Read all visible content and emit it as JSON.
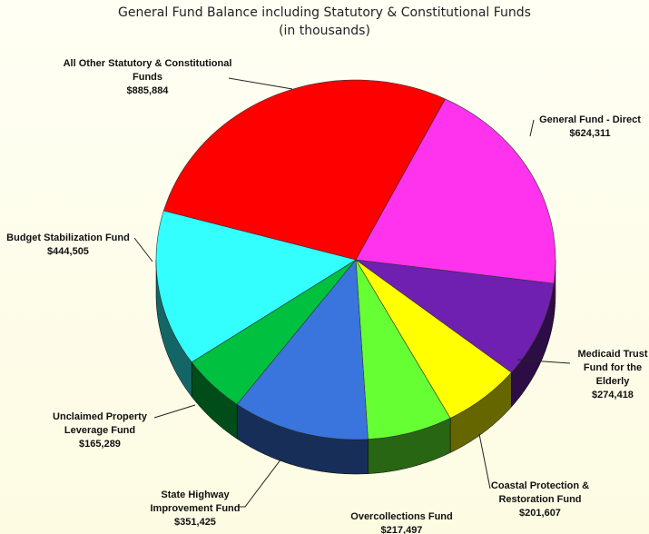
{
  "chart_data": {
    "type": "pie",
    "title": "General Fund Balance including Statutory & Constitutional Funds",
    "subtitle": "(in thousands)",
    "categories": [
      "General Fund - Direct",
      "Medicaid Trust Fund for the Elderly",
      "Coastal Protection & Restoration Fund",
      "Overcollections Fund",
      "State Highway Improvement Fund",
      "Unclaimed Property Leverage Fund",
      "Budget Stabilization Fund",
      "All Other Statutory & Constitutional Funds"
    ],
    "values": [
      624311,
      274418,
      201607,
      217497,
      351425,
      165289,
      444505,
      885884
    ],
    "value_labels": [
      "$624,311",
      "$274,418",
      "$201,607",
      "$217,497",
      "$351,425",
      "$165,289",
      "$444,505",
      "$885,884"
    ],
    "colors": [
      "#ff33ee",
      "#7020b0",
      "#ffff00",
      "#66ff33",
      "#3a75dd",
      "#00c040",
      "#33ffff",
      "#ff0000"
    ]
  }
}
